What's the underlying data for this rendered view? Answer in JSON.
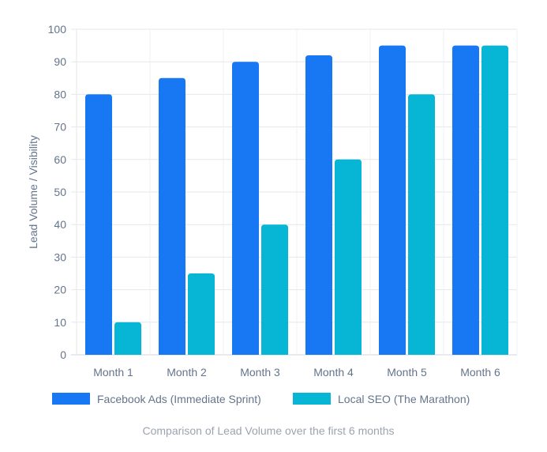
{
  "chart_data": {
    "type": "bar",
    "title": "",
    "caption": "Comparison of Lead Volume over the first 6 months",
    "xlabel": "",
    "ylabel": "Lead Volume / Visibility",
    "ylim": [
      0,
      100
    ],
    "yticks": [
      0,
      10,
      20,
      30,
      40,
      50,
      60,
      70,
      80,
      90,
      100
    ],
    "grid": true,
    "legend_position": "bottom",
    "categories": [
      "Month 1",
      "Month 2",
      "Month 3",
      "Month 4",
      "Month 5",
      "Month 6"
    ],
    "series": [
      {
        "name": "Facebook Ads (Immediate Sprint)",
        "color": "#1877F2",
        "values": [
          80,
          85,
          90,
          92,
          95,
          95
        ]
      },
      {
        "name": "Local SEO (The Marathon)",
        "color": "#06B6D4",
        "values": [
          10,
          25,
          40,
          60,
          80,
          95
        ]
      }
    ]
  }
}
